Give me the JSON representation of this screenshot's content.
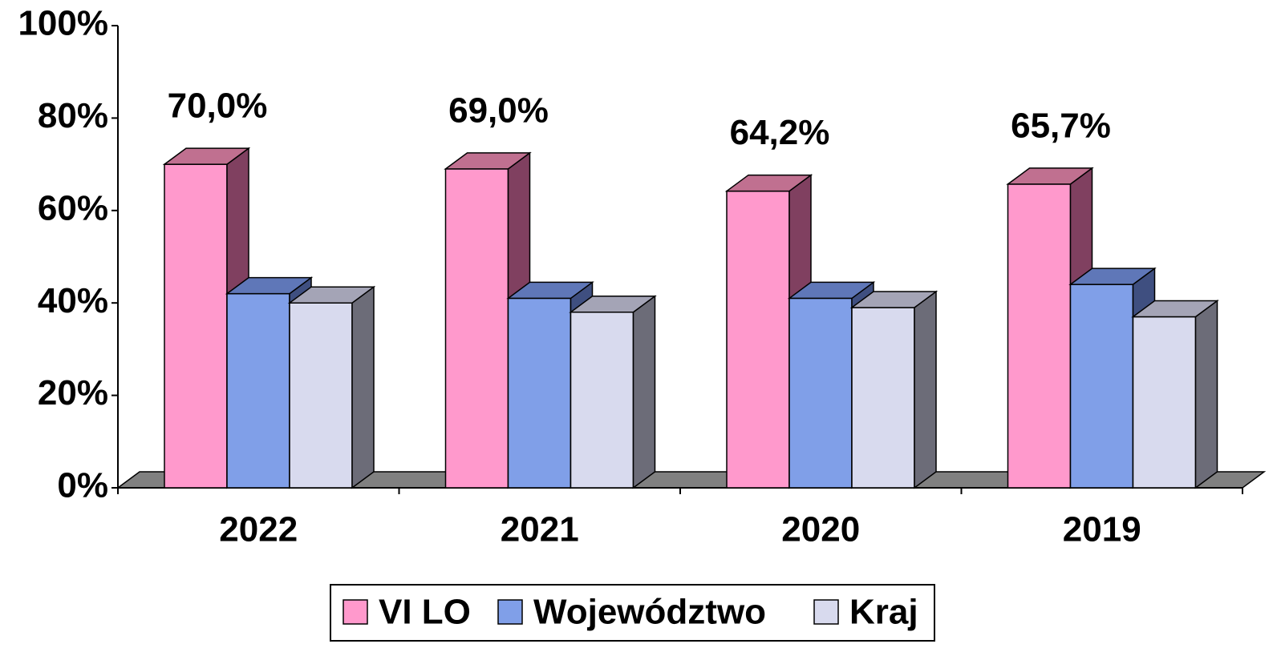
{
  "chart_data": {
    "type": "bar3d",
    "categories": [
      "2022",
      "2021",
      "2020",
      "2019"
    ],
    "series": [
      {
        "name": "VI LO",
        "color": "#ff99cc",
        "side": "#804060",
        "top": "#c07090",
        "values": [
          70.0,
          69.0,
          64.2,
          65.7
        ],
        "value_labels": [
          "70,0%",
          "69,0%",
          "64,2%",
          "65,7%"
        ]
      },
      {
        "name": "Województwo",
        "color": "#809fe8",
        "side": "#3f4f80",
        "top": "#5f77b8",
        "values": [
          42,
          41,
          41,
          44
        ]
      },
      {
        "name": "Kraj",
        "color": "#d8daee",
        "side": "#6c6c78",
        "top": "#a4a4b6",
        "values": [
          40,
          38,
          39,
          37
        ]
      }
    ],
    "ylim": [
      0,
      100
    ],
    "yticks": [
      {
        "value": 0,
        "label": "0%"
      },
      {
        "value": 20,
        "label": "20%"
      },
      {
        "value": 40,
        "label": "40%"
      },
      {
        "value": 60,
        "label": "60%"
      },
      {
        "value": 80,
        "label": "80%"
      },
      {
        "value": 100,
        "label": "100%"
      }
    ]
  }
}
